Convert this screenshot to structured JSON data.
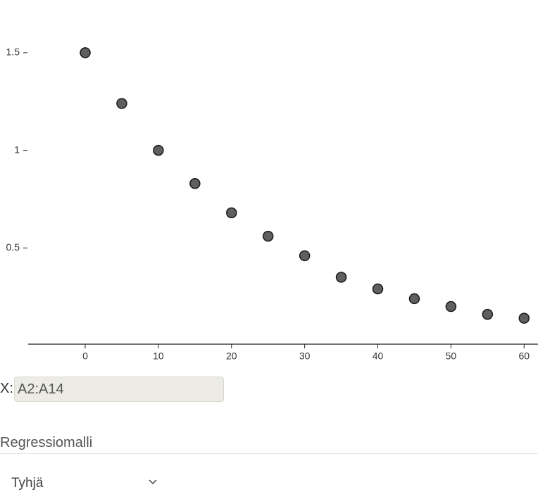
{
  "chart_data": {
    "type": "scatter",
    "x": [
      0,
      5,
      10,
      15,
      20,
      25,
      30,
      35,
      40,
      45,
      50,
      55,
      60
    ],
    "values": [
      1.5,
      1.24,
      1.0,
      0.83,
      0.68,
      0.56,
      0.46,
      0.35,
      0.29,
      0.24,
      0.2,
      0.16,
      0.14
    ],
    "color": "#5f5f5f",
    "xlim": [
      -7.8,
      61.9
    ],
    "ylim": [
      0,
      1.77
    ],
    "xticks": [
      0,
      10,
      20,
      30,
      40,
      50,
      60
    ],
    "yticks": [
      0.5,
      1,
      1.5
    ]
  },
  "form": {
    "x_label": "X:",
    "x_input": "A2:A14",
    "section_title": "Regressiomalli",
    "dropdown": "Tyhjä"
  }
}
